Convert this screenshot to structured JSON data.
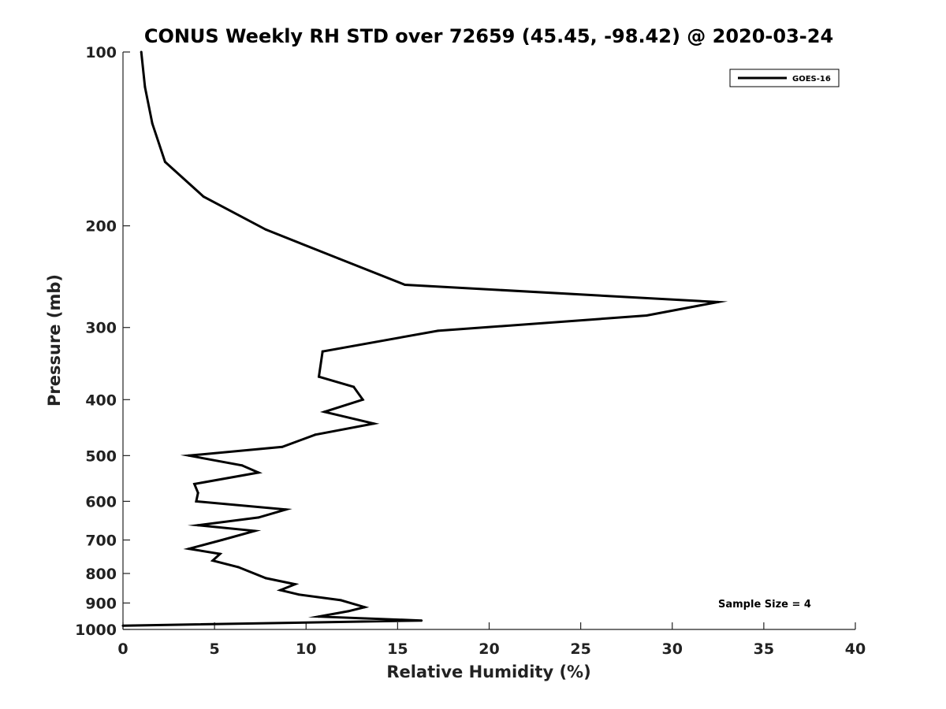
{
  "chart_data": {
    "type": "line",
    "title": "CONUS Weekly RH STD over 72659 (45.45, -98.42) @ 2020-03-24",
    "xlabel": "Relative Humidity (%)",
    "ylabel": "Pressure (mb)",
    "xlim": [
      0,
      40
    ],
    "ylim": [
      100,
      1000
    ],
    "y_scale": "log",
    "y_direction": "reversed",
    "x_ticks": [
      0,
      5,
      10,
      15,
      20,
      25,
      30,
      35,
      40
    ],
    "x_tick_labels": [
      "0",
      "5",
      "10",
      "15",
      "20",
      "25",
      "30",
      "35",
      "40"
    ],
    "y_ticks": [
      100,
      200,
      300,
      400,
      500,
      600,
      700,
      800,
      900,
      1000
    ],
    "y_tick_labels": [
      "100",
      "200",
      "300",
      "400",
      "500",
      "600",
      "700",
      "800",
      "900",
      "1000"
    ],
    "grid": false,
    "legend_position": "top-right",
    "annotation": "Sample Size = 4",
    "series": [
      {
        "name": "GOES-16",
        "color": "#000000",
        "x": [
          1.0,
          1.2,
          1.6,
          2.3,
          4.4,
          7.8,
          11.8,
          15.4,
          32.5,
          28.6,
          17.2,
          10.9,
          10.7,
          12.6,
          13.1,
          11.0,
          13.7,
          10.5,
          8.7,
          3.6,
          6.5,
          7.4,
          3.9,
          4.1,
          4.0,
          8.9,
          7.4,
          4.1,
          7.2,
          5.4,
          3.6,
          5.3,
          4.9,
          6.3,
          7.8,
          9.4,
          8.6,
          9.6,
          11.9,
          13.2,
          12.3,
          10.7,
          16.3,
          0.0
        ],
        "y": [
          100,
          115,
          133,
          155,
          178,
          203,
          228,
          253,
          271,
          286,
          304,
          330,
          365,
          380,
          400,
          420,
          440,
          460,
          483,
          500,
          520,
          535,
          560,
          580,
          600,
          620,
          640,
          660,
          675,
          700,
          725,
          740,
          760,
          780,
          815,
          835,
          855,
          870,
          890,
          915,
          930,
          950,
          965,
          985
        ]
      }
    ]
  }
}
